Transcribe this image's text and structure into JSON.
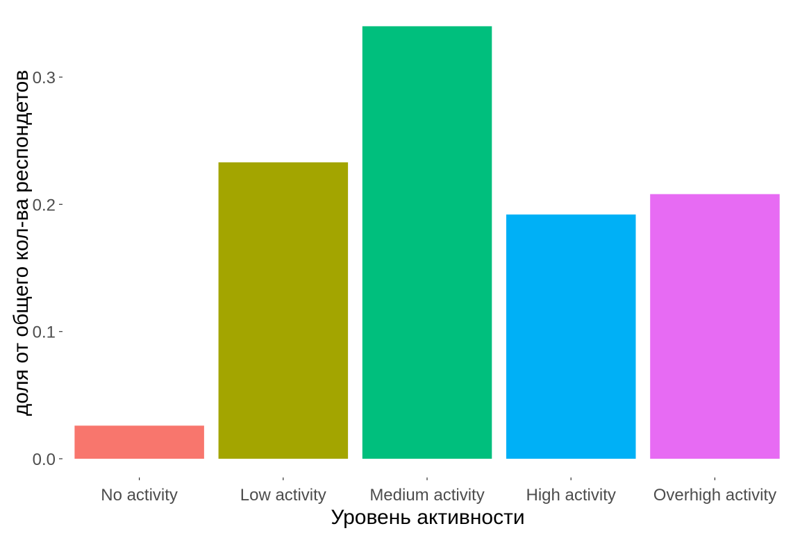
{
  "chart_data": {
    "type": "bar",
    "categories": [
      "No activity",
      "Low activity",
      "Medium activity",
      "High activity",
      "Overhigh activity"
    ],
    "values": [
      0.026,
      0.233,
      0.34,
      0.192,
      0.208
    ],
    "colors": [
      "#F8766D",
      "#A3A500",
      "#00BF7D",
      "#00B0F6",
      "#E76BF3"
    ],
    "xlabel": "Уровень активности",
    "ylabel": "доля от общего кол-ва респондетов",
    "yticks": [
      "0.0",
      "0.1",
      "0.2",
      "0.3"
    ],
    "ylim": [
      0,
      0.34
    ],
    "grid": false,
    "legend": "none",
    "background": "#FFFFFF"
  }
}
